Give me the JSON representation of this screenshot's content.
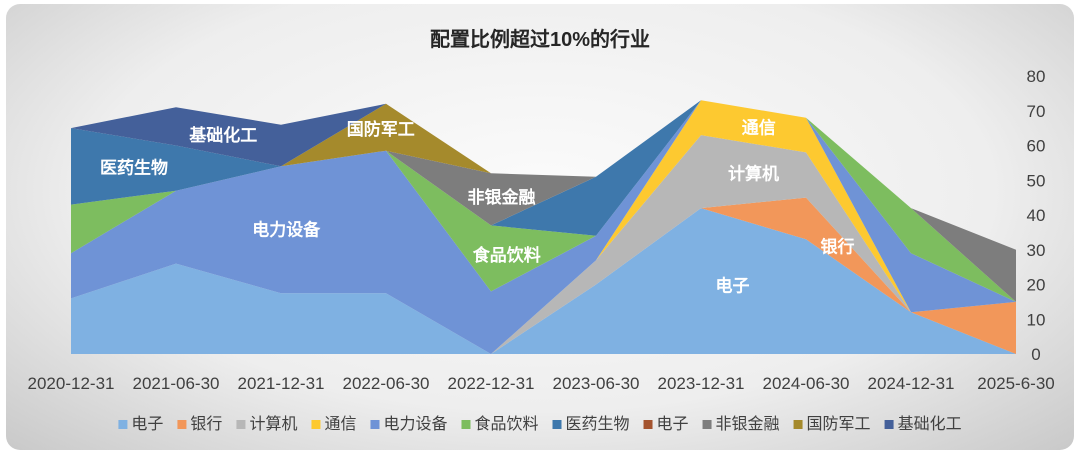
{
  "chart_data": {
    "type": "area",
    "stacked": true,
    "title": "配置比例超过10%的行业",
    "x": [
      "2020-12-31",
      "2021-06-30",
      "2021-12-31",
      "2022-06-30",
      "2022-12-31",
      "2023-06-30",
      "2023-12-31",
      "2024-06-30",
      "2024-12-31",
      "2025-6-30"
    ],
    "ylim": [
      0,
      80
    ],
    "yticks": [
      0,
      10,
      20,
      30,
      40,
      50,
      60,
      70,
      80
    ],
    "y_axis_side": "right",
    "grid": false,
    "legend_position": "bottom",
    "series": [
      {
        "name": "电子",
        "color": "#7fb1e2",
        "values": [
          16,
          26,
          17.5,
          17.5,
          0,
          20,
          42,
          33,
          12,
          0
        ]
      },
      {
        "name": "银行",
        "color": "#f2975a",
        "values": [
          0,
          0,
          0,
          0,
          0,
          0,
          0,
          12,
          0,
          15
        ]
      },
      {
        "name": "计算机",
        "color": "#b7b7b7",
        "values": [
          0,
          0,
          0,
          0,
          0,
          7,
          21,
          13,
          0,
          0
        ]
      },
      {
        "name": "通信",
        "color": "#fdc930",
        "values": [
          0,
          0,
          0,
          0,
          0,
          0,
          10,
          10,
          0,
          0
        ]
      },
      {
        "name": "电力设备",
        "color": "#6f93d6",
        "values": [
          13,
          21,
          36.5,
          41,
          18,
          7,
          0,
          0,
          17,
          0
        ]
      },
      {
        "name": "食品饮料",
        "color": "#7dbd5f",
        "values": [
          14,
          0,
          0,
          0,
          19,
          0,
          0,
          0,
          13,
          0
        ]
      },
      {
        "name": "医药生物",
        "color": "#3e78ac",
        "values": [
          22,
          13,
          0,
          0,
          0,
          17,
          0,
          0,
          0,
          0
        ]
      },
      {
        "name": "电子",
        "color": "#a4542f",
        "values": [
          0,
          0,
          0,
          0,
          0,
          0,
          0,
          0,
          0,
          0
        ]
      },
      {
        "name": "非银金融",
        "color": "#7d7d7d",
        "values": [
          0,
          0,
          0,
          0,
          15,
          0,
          0,
          0,
          0,
          15
        ]
      },
      {
        "name": "国防军工",
        "color": "#a58a2c",
        "values": [
          0,
          0,
          0,
          13.5,
          0,
          0,
          0,
          0,
          0,
          0
        ]
      },
      {
        "name": "基础化工",
        "color": "#44609a",
        "values": [
          0,
          11,
          12,
          0,
          0,
          0,
          0,
          0,
          0,
          0
        ]
      }
    ],
    "area_labels": [
      {
        "text": "医药生物",
        "series_index": 6,
        "x_index": 0.6
      },
      {
        "text": "基础化工",
        "series_index": 10,
        "x_index": 1.45
      },
      {
        "text": "国防军工",
        "series_index": 9,
        "x_index": 2.95
      },
      {
        "text": "电力设备",
        "series_index": 4,
        "x_index": 2.05
      },
      {
        "text": "非银金融",
        "series_index": 8,
        "x_index": 4.1
      },
      {
        "text": "食品饮料",
        "series_index": 5,
        "x_index": 4.15
      },
      {
        "text": "通信",
        "series_index": 3,
        "x_index": 6.55
      },
      {
        "text": "计算机",
        "series_index": 2,
        "x_index": 6.5
      },
      {
        "text": "银行",
        "series_index": 1,
        "x_index": 7.3
      },
      {
        "text": "电子",
        "series_index": 0,
        "x_index": 6.3
      }
    ]
  }
}
